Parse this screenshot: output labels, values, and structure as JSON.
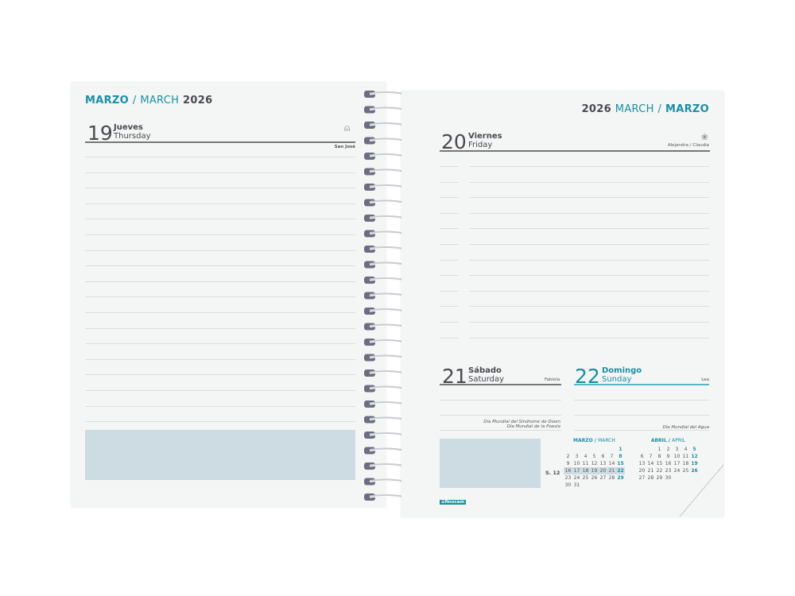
{
  "left": {
    "title_es": "MARZO",
    "sep": "/",
    "title_en": "MARCH",
    "year": "2026",
    "day": {
      "num": "19",
      "es": "Jueves",
      "en": "Thursday",
      "saint": "San José",
      "icon": "person-icon"
    }
  },
  "right": {
    "year": "2026",
    "title_en": "MARCH",
    "sep": "/",
    "title_es": "MARZO",
    "friday": {
      "num": "20",
      "es": "Viernes",
      "en": "Friday",
      "saint": "Alejandra / Claudia",
      "icon": "flower-icon"
    },
    "saturday": {
      "num": "21",
      "es": "Sábado",
      "en": "Saturday",
      "saint": "Fabiola",
      "notes": [
        "Día Mundial del Síndrome de Down",
        "Día Mundial de la Poesía"
      ]
    },
    "sunday": {
      "num": "22",
      "es": "Domingo",
      "en": "Sunday",
      "saint": "Lea",
      "notes": [
        "Día Mundial del Agua"
      ]
    },
    "week_label": "S. 12",
    "mini_calendars": [
      {
        "title_es": "MARZO",
        "title_en": "MARCH",
        "weeks": [
          [
            "",
            "",
            "",
            "",
            "",
            "",
            "1"
          ],
          [
            "2",
            "3",
            "4",
            "5",
            "6",
            "7",
            "8"
          ],
          [
            "9",
            "10",
            "11",
            "12",
            "13",
            "14",
            "15"
          ],
          [
            "16",
            "17",
            "18",
            "19",
            "20",
            "21",
            "22"
          ],
          [
            "23",
            "24",
            "25",
            "26",
            "27",
            "28",
            "29"
          ],
          [
            "30",
            "31",
            "",
            "",
            "",
            "",
            ""
          ]
        ],
        "highlight_week": 3
      },
      {
        "title_es": "ABRIL",
        "title_en": "APRIL",
        "weeks": [
          [
            "",
            "",
            "1",
            "2",
            "3",
            "4",
            "5"
          ],
          [
            "6",
            "7",
            "8",
            "9",
            "10",
            "11",
            "12"
          ],
          [
            "13",
            "14",
            "15",
            "16",
            "17",
            "18",
            "19"
          ],
          [
            "20",
            "21",
            "22",
            "23",
            "24",
            "25",
            "26"
          ],
          [
            "27",
            "28",
            "29",
            "30",
            "",
            "",
            ""
          ]
        ]
      }
    ],
    "brand": "finocam"
  },
  "colors": {
    "accent": "#1b8fa3",
    "box": "#cddbe3"
  }
}
